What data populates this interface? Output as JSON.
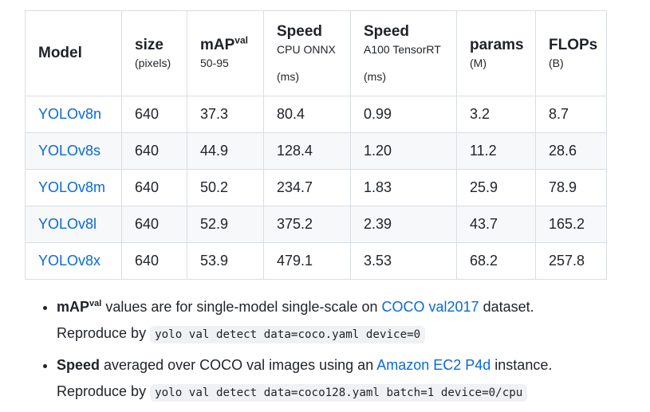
{
  "table": {
    "headers": {
      "model": "Model",
      "size": "size",
      "size_unit": "(pixels)",
      "map": "mAP",
      "map_sup": "val",
      "map_sub": "50-95",
      "speed_cpu": "Speed",
      "speed_cpu_sub": "CPU ONNX",
      "speed_cpu_unit": "(ms)",
      "speed_gpu": "Speed",
      "speed_gpu_sub": "A100 TensorRT",
      "speed_gpu_unit": "(ms)",
      "params": "params",
      "params_unit": "(M)",
      "flops": "FLOPs",
      "flops_unit": "(B)"
    },
    "rows": [
      {
        "model": "YOLOv8n",
        "size": "640",
        "map": "37.3",
        "cpu": "80.4",
        "gpu": "0.99",
        "params": "3.2",
        "flops": "8.7"
      },
      {
        "model": "YOLOv8s",
        "size": "640",
        "map": "44.9",
        "cpu": "128.4",
        "gpu": "1.20",
        "params": "11.2",
        "flops": "28.6"
      },
      {
        "model": "YOLOv8m",
        "size": "640",
        "map": "50.2",
        "cpu": "234.7",
        "gpu": "1.83",
        "params": "25.9",
        "flops": "78.9"
      },
      {
        "model": "YOLOv8l",
        "size": "640",
        "map": "52.9",
        "cpu": "375.2",
        "gpu": "2.39",
        "params": "43.7",
        "flops": "165.2"
      },
      {
        "model": "YOLOv8x",
        "size": "640",
        "map": "53.9",
        "cpu": "479.1",
        "gpu": "3.53",
        "params": "68.2",
        "flops": "257.8"
      }
    ]
  },
  "notes": [
    {
      "bold": "mAP",
      "bold_sup": "val",
      "text1": " values are for single-model single-scale on ",
      "link": "COCO val2017",
      "text2": " dataset.",
      "reproduce": "Reproduce by ",
      "code": "yolo val detect data=coco.yaml device=0"
    },
    {
      "bold": "Speed",
      "text1": " averaged over COCO val images using an ",
      "link": "Amazon EC2 P4d",
      "text2": " instance.",
      "reproduce": "Reproduce by ",
      "code": "yolo val detect data=coco128.yaml batch=1 device=0/cpu"
    }
  ],
  "colors": {
    "link": "#0969da",
    "border": "#d8dee4",
    "stripe": "#f6f8fa",
    "code_bg": "#eff1f3"
  }
}
